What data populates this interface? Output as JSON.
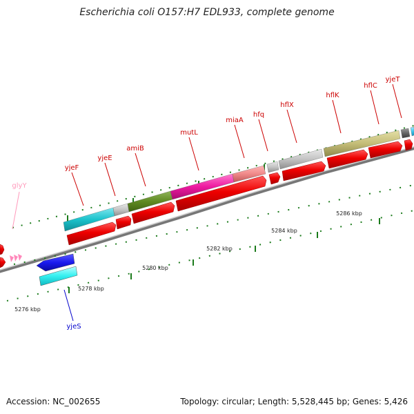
{
  "title": "Escherichia coli O157:H7 EDL933, complete genome",
  "footer": {
    "accession": "Accession: NC_002655",
    "topology": "Topology: circular; Length: 5,528,445 bp; Genes: 5,426"
  },
  "scale_labels": [
    "5276 kbp",
    "5278 kbp",
    "5280 kbp",
    "5282 kbp",
    "5284 kbp",
    "5286 kbp"
  ],
  "gene_labels": [
    "glyY",
    "yjeF",
    "yjeE",
    "amiB",
    "mutL",
    "miaA",
    "hfq",
    "hflX",
    "hflK",
    "hflC",
    "yjeT",
    "yjeS"
  ],
  "colors": {
    "label_forward": "#cc0000",
    "label_reverse": "#0000cc",
    "label_trna": "#ff99bb",
    "cds_arrow": "#ee0000",
    "backbone": "#999999",
    "tick": "#1a7a1a"
  }
}
